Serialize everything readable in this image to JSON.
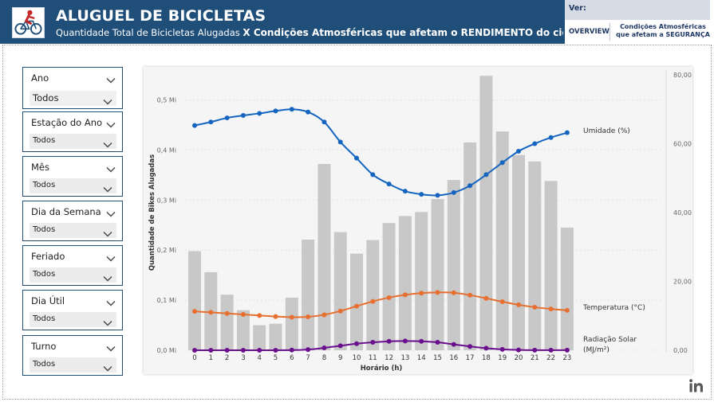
{
  "header": {
    "title": "ALUGUEL DE BICICLETAS",
    "subtitle_plain": "Quantidade Total de Bicicletas Alugadas ",
    "subtitle_bold": "X Condições Atmosféricas que afetam o RENDIMENTO do ciclista",
    "brand_color": "#1f4e79"
  },
  "nav": {
    "label": "Ver:",
    "overview_label": "OVERVIEW",
    "conditions_line1": "Condições Atmosféricas",
    "conditions_line2": "que afetam a SEGURANÇA"
  },
  "slicers": [
    {
      "title": "Ano",
      "value": "Todos"
    },
    {
      "title": "Estação do Ano",
      "value": "Todos"
    },
    {
      "title": "Mês",
      "value": "Todos"
    },
    {
      "title": "Dia da Semana",
      "value": "Todos"
    },
    {
      "title": "Feriado",
      "value": "Todos"
    },
    {
      "title": "Dia Útil",
      "value": "Todos"
    },
    {
      "title": "Turno",
      "value": "Todos"
    }
  ],
  "chart_data": {
    "type": "bar",
    "title": "",
    "xlabel": "Horário (h)",
    "ylabel": "Quantidade de Bikes Alugadas",
    "categories": [
      "0",
      "1",
      "2",
      "3",
      "4",
      "5",
      "6",
      "7",
      "8",
      "9",
      "10",
      "11",
      "12",
      "13",
      "14",
      "15",
      "16",
      "17",
      "18",
      "19",
      "20",
      "21",
      "22",
      "23"
    ],
    "y_ticks": [
      "0,0 Mi",
      "0,1 Mi",
      "0,2 Mi",
      "0,3 Mi",
      "0,4 Mi",
      "0,5 Mi"
    ],
    "ylim": [
      0,
      0.55
    ],
    "y2_ticks": [
      "0,00",
      "20,00",
      "40,00",
      "60,00",
      "80,00"
    ],
    "y2lim": [
      0,
      80
    ],
    "grid": true,
    "series": [
      {
        "name": "Quantidade de Bikes Alugadas",
        "kind": "bar",
        "axis": "left",
        "color": "#c8c8c8",
        "values": [
          0.198,
          0.156,
          0.111,
          0.08,
          0.05,
          0.053,
          0.105,
          0.221,
          0.372,
          0.236,
          0.193,
          0.22,
          0.254,
          0.268,
          0.276,
          0.302,
          0.34,
          0.415,
          0.548,
          0.437,
          0.39,
          0.377,
          0.338,
          0.245
        ]
      },
      {
        "name": "Umidade (%)",
        "kind": "line",
        "axis": "right",
        "color": "#1565c0",
        "values": [
          65.3,
          66.3,
          67.5,
          68.2,
          68.8,
          69.5,
          70.0,
          69.2,
          66.3,
          60.5,
          55.8,
          51.0,
          48.3,
          46.2,
          45.3,
          45.0,
          45.8,
          47.8,
          51.0,
          54.5,
          57.8,
          60.0,
          61.8,
          63.2
        ]
      },
      {
        "name": "Temperatura (°C)",
        "kind": "line",
        "axis": "right",
        "color": "#e76f2f",
        "values": [
          11.3,
          11.0,
          10.7,
          10.4,
          10.1,
          9.8,
          9.6,
          9.7,
          10.3,
          11.4,
          12.8,
          14.2,
          15.3,
          16.1,
          16.6,
          16.8,
          16.7,
          16.0,
          15.1,
          14.1,
          13.2,
          12.5,
          12.0,
          11.6
        ]
      },
      {
        "name": "Radiação Solar (MJ/m²)",
        "name_line1": "Radiação Solar",
        "name_line2": "(MJ/m²)",
        "kind": "line",
        "axis": "right",
        "color": "#6a0f8e",
        "values": [
          0.0,
          0.0,
          0.0,
          0.0,
          0.0,
          0.0,
          0.05,
          0.2,
          0.7,
          1.3,
          1.9,
          2.3,
          2.6,
          2.7,
          2.6,
          2.3,
          1.7,
          1.1,
          0.6,
          0.25,
          0.08,
          0.03,
          0.02,
          0.02
        ]
      }
    ],
    "legend_placement": "right, at line ends"
  }
}
